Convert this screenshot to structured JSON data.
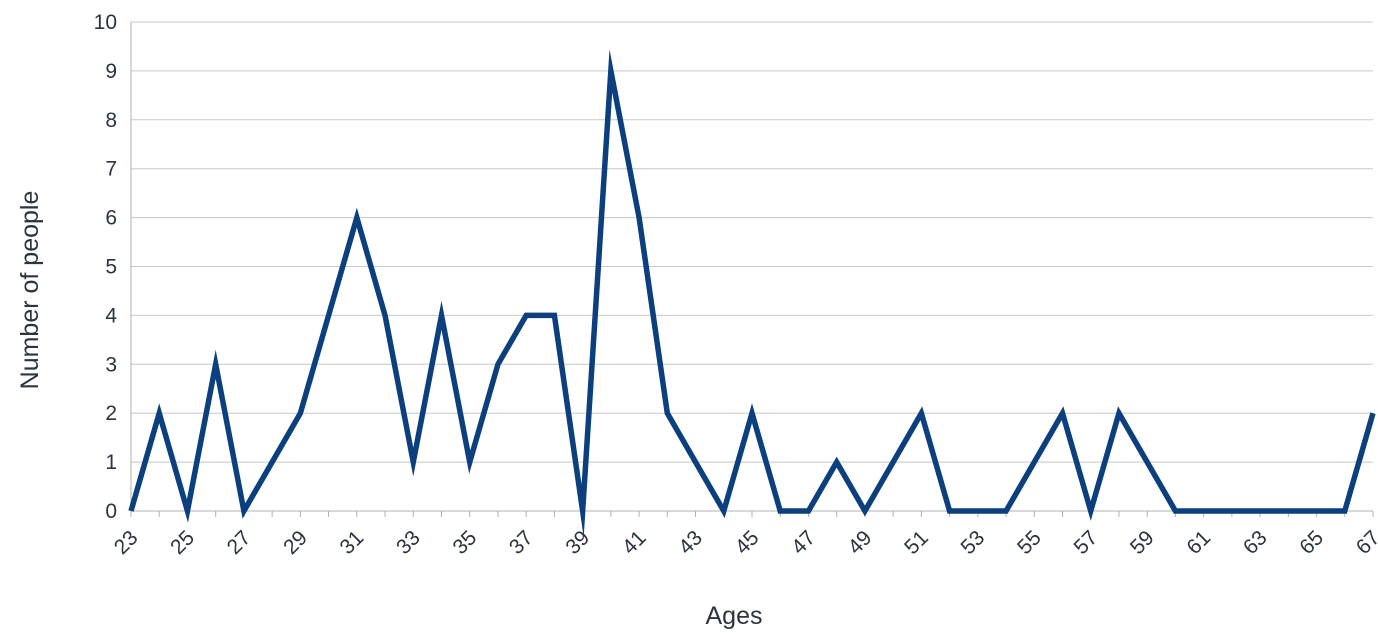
{
  "chart_data": {
    "type": "line",
    "title": "",
    "xlabel": "Ages",
    "ylabel": "Number of people",
    "x": [
      23,
      24,
      25,
      26,
      27,
      28,
      29,
      30,
      31,
      32,
      33,
      34,
      35,
      36,
      37,
      38,
      39,
      40,
      41,
      42,
      43,
      44,
      45,
      46,
      47,
      48,
      49,
      50,
      51,
      52,
      53,
      54,
      55,
      56,
      57,
      58,
      59,
      60,
      61,
      62,
      63,
      64,
      65,
      66,
      67
    ],
    "x_tick_labels": [
      "23",
      "25",
      "27",
      "29",
      "31",
      "33",
      "35",
      "37",
      "39",
      "41",
      "43",
      "45",
      "47",
      "49",
      "51",
      "53",
      "55",
      "57",
      "59",
      "61",
      "63",
      "65",
      "67"
    ],
    "y_tick_labels": [
      "0",
      "1",
      "2",
      "3",
      "4",
      "5",
      "6",
      "7",
      "8",
      "9",
      "10"
    ],
    "series": [
      {
        "values": [
          0,
          2,
          0,
          3,
          0,
          1,
          2,
          4,
          6,
          4,
          1,
          4,
          1,
          3,
          4,
          4,
          0,
          9,
          6,
          2,
          1,
          0,
          2,
          0,
          0,
          1,
          0,
          1,
          2,
          0,
          0,
          0,
          1,
          2,
          0,
          2,
          1,
          0,
          0,
          0,
          0,
          0,
          0,
          0,
          2
        ],
        "color": "#0b3f7e"
      }
    ],
    "xlim": [
      23,
      67
    ],
    "ylim": [
      0,
      10
    ],
    "grid": true,
    "legend": "none"
  }
}
